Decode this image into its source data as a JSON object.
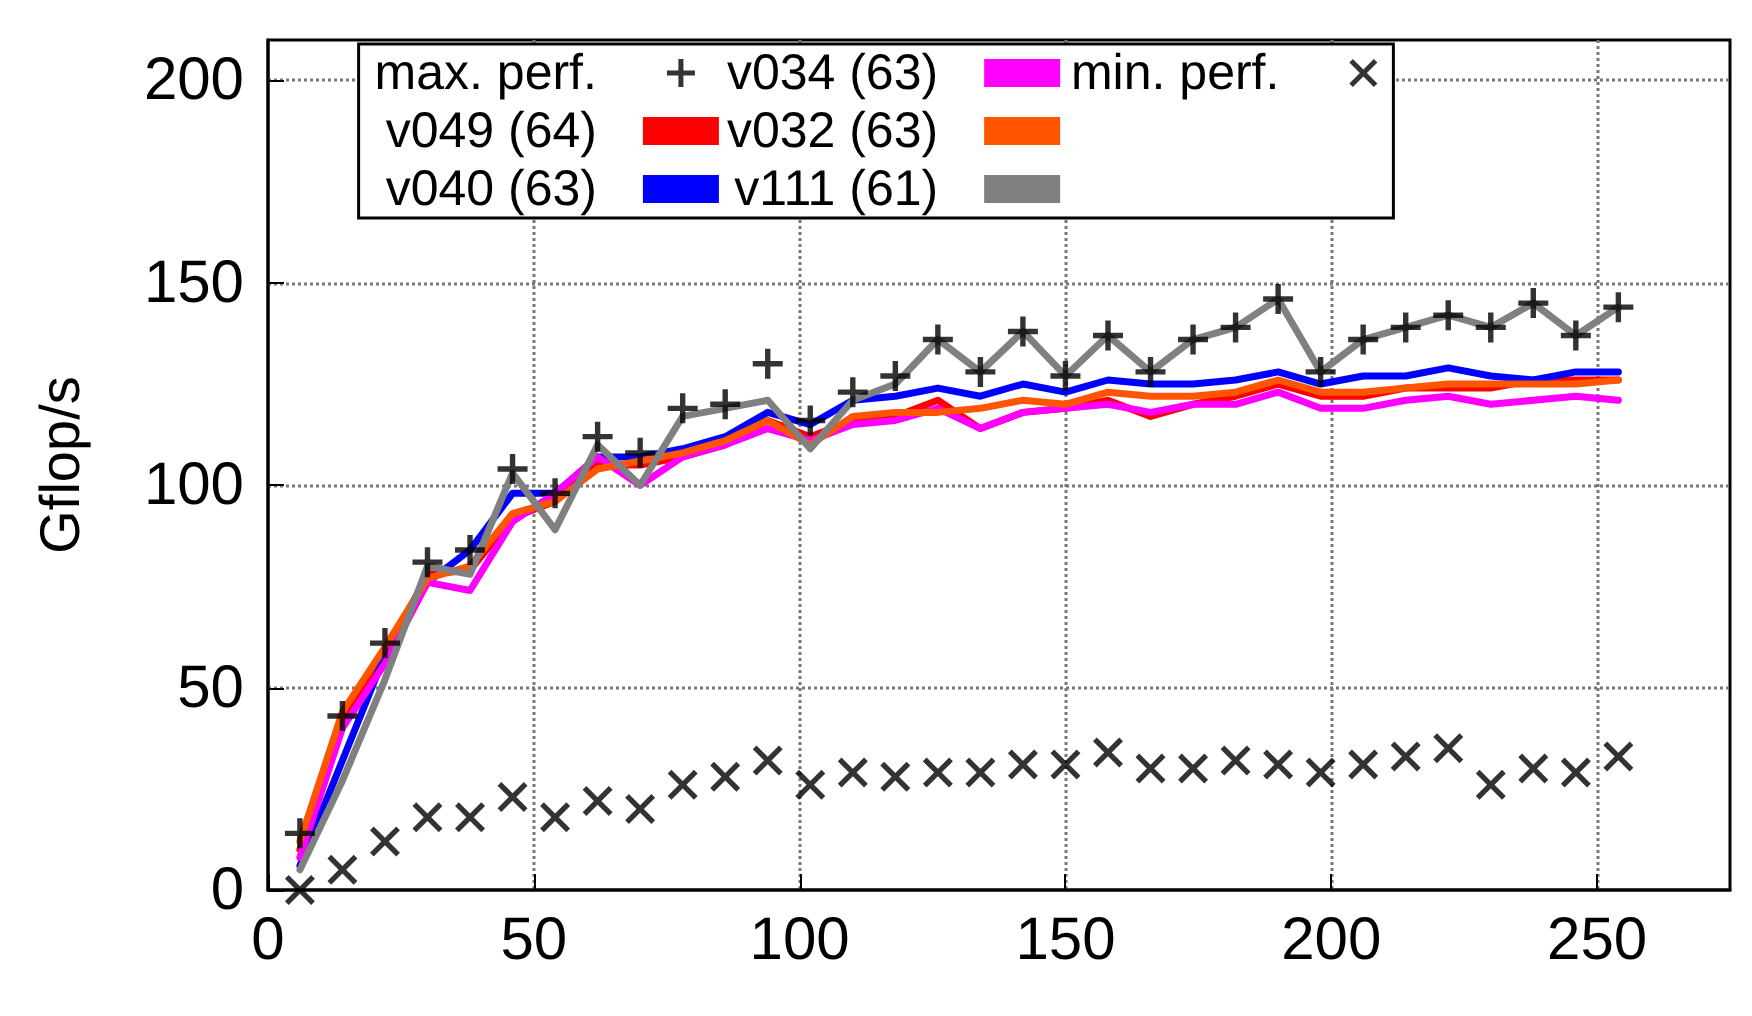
{
  "chart_data": {
    "type": "line",
    "ylabel": "Gflop/s",
    "x": [
      6,
      14,
      22,
      30,
      38,
      46,
      54,
      62,
      70,
      78,
      86,
      94,
      102,
      110,
      118,
      126,
      134,
      142,
      150,
      158,
      166,
      174,
      182,
      190,
      198,
      206,
      214,
      222,
      230,
      238,
      246,
      254
    ],
    "xlim": [
      0,
      275
    ],
    "xticks": [
      0,
      50,
      100,
      150,
      200,
      250
    ],
    "ylim": [
      0,
      210
    ],
    "yticks": [
      0,
      50,
      100,
      150,
      200
    ],
    "grid": true,
    "legend": "top",
    "line_style": "solid",
    "marker": "none",
    "series": [
      {
        "name": "max. perf.",
        "type": "scatter",
        "marker": "plus",
        "color": "#000000",
        "values": [
          14,
          43,
          61,
          81,
          84,
          104,
          98,
          112,
          108,
          119,
          120,
          130,
          116,
          123,
          127,
          136,
          128,
          138,
          127,
          137,
          128,
          136,
          139,
          146,
          128,
          136,
          139,
          142,
          139,
          145,
          137,
          144
        ]
      },
      {
        "name": "v049 (64)",
        "color": "#ff0000",
        "values": [
          10,
          42,
          58,
          78,
          79,
          92,
          96,
          105,
          105,
          107,
          110,
          116,
          112,
          116,
          117,
          121,
          114,
          118,
          119,
          121,
          117,
          120,
          122,
          125,
          122,
          122,
          124,
          124,
          124,
          126,
          126,
          126
        ]
      },
      {
        "name": "v040 (63)",
        "color": "#0000ff",
        "values": [
          6,
          null,
          58,
          76,
          84,
          98,
          98,
          107,
          107,
          109,
          112,
          118,
          115,
          121,
          122,
          124,
          122,
          125,
          123,
          126,
          125,
          125,
          126,
          128,
          125,
          127,
          127,
          129,
          127,
          126,
          128,
          128
        ]
      },
      {
        "name": "v034 (63)",
        "color": "#ff00ff",
        "values": [
          8,
          40,
          56,
          76,
          74,
          91,
          98,
          107,
          100,
          107,
          110,
          114,
          111,
          115,
          116,
          119,
          114,
          118,
          119,
          120,
          118,
          120,
          120,
          123,
          119,
          119,
          121,
          122,
          120,
          121,
          122,
          121
        ]
      },
      {
        "name": "v032 (63)",
        "color": "#ff5500",
        "values": [
          12,
          44,
          60,
          77,
          80,
          93,
          96,
          104,
          106,
          108,
          111,
          116,
          110,
          117,
          118,
          118,
          119,
          121,
          120,
          123,
          122,
          122,
          123,
          126,
          123,
          123,
          124,
          125,
          125,
          125,
          125,
          126
        ]
      },
      {
        "name": "v111 (61)",
        "color": "#808080",
        "values": [
          5,
          27,
          52,
          80,
          78,
          103,
          89,
          110,
          100,
          117,
          119,
          121,
          109,
          121,
          125,
          136,
          128,
          138,
          127,
          137,
          128,
          136,
          139,
          146,
          128,
          136,
          139,
          142,
          139,
          145,
          137,
          144
        ]
      },
      {
        "name": "min. perf.",
        "type": "scatter",
        "marker": "cross",
        "color": "#000000",
        "values": [
          0,
          5,
          12,
          18,
          18,
          23,
          18,
          22,
          20,
          26,
          28,
          32,
          26,
          29,
          28,
          29,
          29,
          31,
          31,
          34,
          30,
          30,
          32,
          31,
          29,
          31,
          33,
          35,
          26,
          30,
          29,
          33
        ]
      }
    ]
  }
}
